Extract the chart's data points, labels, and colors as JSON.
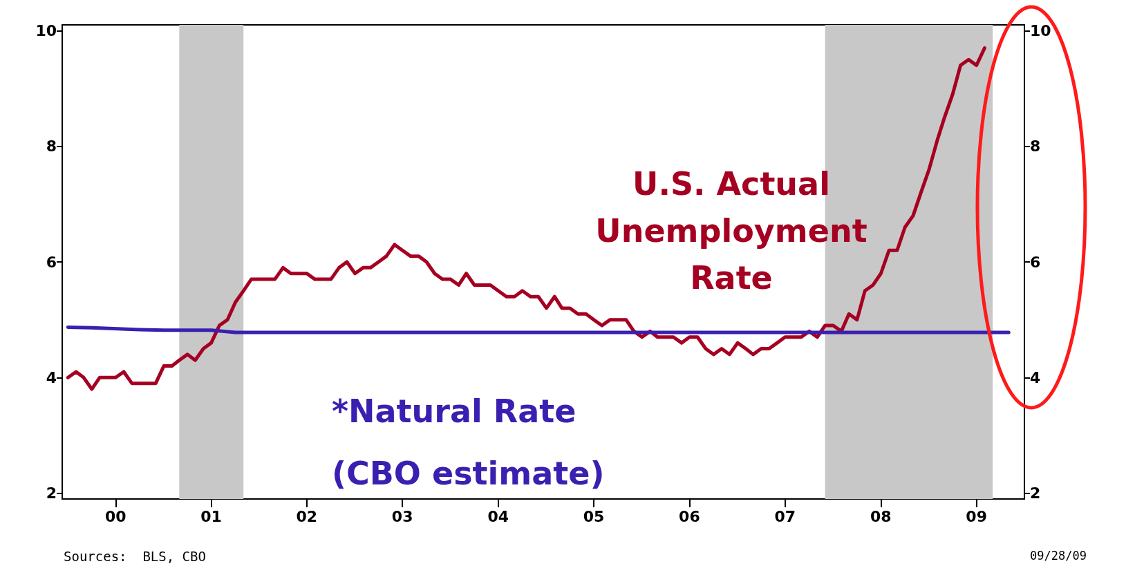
{
  "chart_data": {
    "type": "line",
    "annotations": [
      "Sources:  BLS, CBO",
      "09/28/09"
    ],
    "xlim": [
      "1999-12-10",
      "2009-12-31"
    ],
    "xticks": [
      {
        "value": "2000-07-01",
        "label": "00"
      },
      {
        "value": "2001-07-01",
        "label": "01"
      },
      {
        "value": "2002-07-01",
        "label": "02"
      },
      {
        "value": "2003-07-01",
        "label": "03"
      },
      {
        "value": "2004-07-01",
        "label": "04"
      },
      {
        "value": "2005-07-01",
        "label": "05"
      },
      {
        "value": "2006-07-01",
        "label": "06"
      },
      {
        "value": "2007-07-01",
        "label": "07"
      },
      {
        "value": "2008-07-01",
        "label": "08"
      },
      {
        "value": "2009-07-01",
        "label": "09"
      }
    ],
    "ylim": [
      1.9,
      10.1
    ],
    "yticks": [
      2,
      4,
      6,
      8,
      10
    ],
    "y2lim": [
      1.9,
      10.1
    ],
    "y2ticks": [
      2,
      4,
      6,
      8,
      10
    ],
    "grid": false,
    "legend": false,
    "marker": "none",
    "line_style": "solid",
    "bands": [
      {
        "axis": "x",
        "from": "2001-03",
        "to": "2001-11",
        "color": "#c8c8c8"
      },
      {
        "axis": "x",
        "from": "2007-12",
        "to": "2009-09",
        "color": "#c8c8c8"
      }
    ],
    "series": [
      {
        "name": "U.S. Actual Unemployment Rate",
        "color": "#a50021",
        "x": [
          "2000-01",
          "2000-02",
          "2000-03",
          "2000-04",
          "2000-05",
          "2000-06",
          "2000-07",
          "2000-08",
          "2000-09",
          "2000-10",
          "2000-11",
          "2000-12",
          "2001-01",
          "2001-02",
          "2001-03",
          "2001-04",
          "2001-05",
          "2001-06",
          "2001-07",
          "2001-08",
          "2001-09",
          "2001-10",
          "2001-11",
          "2001-12",
          "2002-01",
          "2002-02",
          "2002-03",
          "2002-04",
          "2002-05",
          "2002-06",
          "2002-07",
          "2002-08",
          "2002-09",
          "2002-10",
          "2002-11",
          "2002-12",
          "2003-01",
          "2003-02",
          "2003-03",
          "2003-04",
          "2003-05",
          "2003-06",
          "2003-07",
          "2003-08",
          "2003-09",
          "2003-10",
          "2003-11",
          "2003-12",
          "2004-01",
          "2004-02",
          "2004-03",
          "2004-04",
          "2004-05",
          "2004-06",
          "2004-07",
          "2004-08",
          "2004-09",
          "2004-10",
          "2004-11",
          "2004-12",
          "2005-01",
          "2005-02",
          "2005-03",
          "2005-04",
          "2005-05",
          "2005-06",
          "2005-07",
          "2005-08",
          "2005-09",
          "2005-10",
          "2005-11",
          "2005-12",
          "2006-01",
          "2006-02",
          "2006-03",
          "2006-04",
          "2006-05",
          "2006-06",
          "2006-07",
          "2006-08",
          "2006-09",
          "2006-10",
          "2006-11",
          "2006-12",
          "2007-01",
          "2007-02",
          "2007-03",
          "2007-04",
          "2007-05",
          "2007-06",
          "2007-07",
          "2007-08",
          "2007-09",
          "2007-10",
          "2007-11",
          "2007-12",
          "2008-01",
          "2008-02",
          "2008-03",
          "2008-04",
          "2008-05",
          "2008-06",
          "2008-07",
          "2008-08",
          "2008-09",
          "2008-10",
          "2008-11",
          "2008-12",
          "2009-01",
          "2009-02",
          "2009-03",
          "2009-04",
          "2009-05",
          "2009-06",
          "2009-07",
          "2009-08"
        ],
        "values": [
          4.0,
          4.1,
          4.0,
          3.8,
          4.0,
          4.0,
          4.0,
          4.1,
          3.9,
          3.9,
          3.9,
          3.9,
          4.2,
          4.2,
          4.3,
          4.4,
          4.3,
          4.5,
          4.6,
          4.9,
          5.0,
          5.3,
          5.5,
          5.7,
          5.7,
          5.7,
          5.7,
          5.9,
          5.8,
          5.8,
          5.8,
          5.7,
          5.7,
          5.7,
          5.9,
          6.0,
          5.8,
          5.9,
          5.9,
          6.0,
          6.1,
          6.3,
          6.2,
          6.1,
          6.1,
          6.0,
          5.8,
          5.7,
          5.7,
          5.6,
          5.8,
          5.6,
          5.6,
          5.6,
          5.5,
          5.4,
          5.4,
          5.5,
          5.4,
          5.4,
          5.2,
          5.4,
          5.2,
          5.2,
          5.1,
          5.1,
          5.0,
          4.9,
          5.0,
          5.0,
          5.0,
          4.8,
          4.7,
          4.8,
          4.7,
          4.7,
          4.7,
          4.6,
          4.7,
          4.7,
          4.5,
          4.4,
          4.5,
          4.4,
          4.6,
          4.5,
          4.4,
          4.5,
          4.5,
          4.6,
          4.7,
          4.7,
          4.7,
          4.8,
          4.7,
          4.9,
          4.9,
          4.8,
          5.1,
          5.0,
          5.5,
          5.6,
          5.8,
          6.2,
          6.2,
          6.6,
          6.8,
          7.2,
          7.6,
          8.1,
          8.5,
          8.9,
          9.4,
          9.5,
          9.4,
          9.7
        ]
      },
      {
        "name": "*Natural Rate (CBO estimate)",
        "color": "#3a1fb0",
        "x": [
          "2000-01",
          "2000-04",
          "2000-10",
          "2001-01",
          "2001-07",
          "2001-10",
          "2009-11"
        ],
        "values": [
          4.87,
          4.86,
          4.83,
          4.82,
          4.82,
          4.78,
          4.78
        ]
      }
    ]
  }
}
